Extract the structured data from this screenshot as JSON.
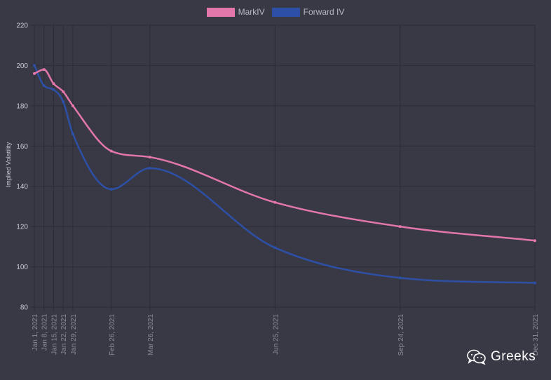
{
  "chart_data": {
    "type": "line",
    "ylabel": "Implied Volatility",
    "ylim": [
      80,
      220
    ],
    "yticks": [
      80,
      100,
      120,
      140,
      160,
      180,
      200,
      220
    ],
    "grid": true,
    "legend_position": "top-center",
    "x": [
      "Jan 1, 2021",
      "Jan 8, 2021",
      "Jan 15, 2021",
      "Jan 22, 2021",
      "Jan 29, 2021",
      "Feb 26, 2021",
      "Mar 26, 2021",
      "Jun 25, 2021",
      "Sep 24, 2021",
      "Dec 31, 2021"
    ],
    "series": [
      {
        "name": "MarkIV",
        "color": "#e377ab",
        "values": [
          196,
          198,
          191,
          187,
          180,
          157.5,
          154.5,
          132,
          120,
          113
        ]
      },
      {
        "name": "Forward IV",
        "color": "#2d50a6",
        "values": [
          200,
          190,
          188,
          182,
          166,
          138.5,
          149,
          109.5,
          94.5,
          92
        ]
      }
    ]
  },
  "watermark": {
    "text": "Greeks",
    "icon": "wechat-icon"
  }
}
